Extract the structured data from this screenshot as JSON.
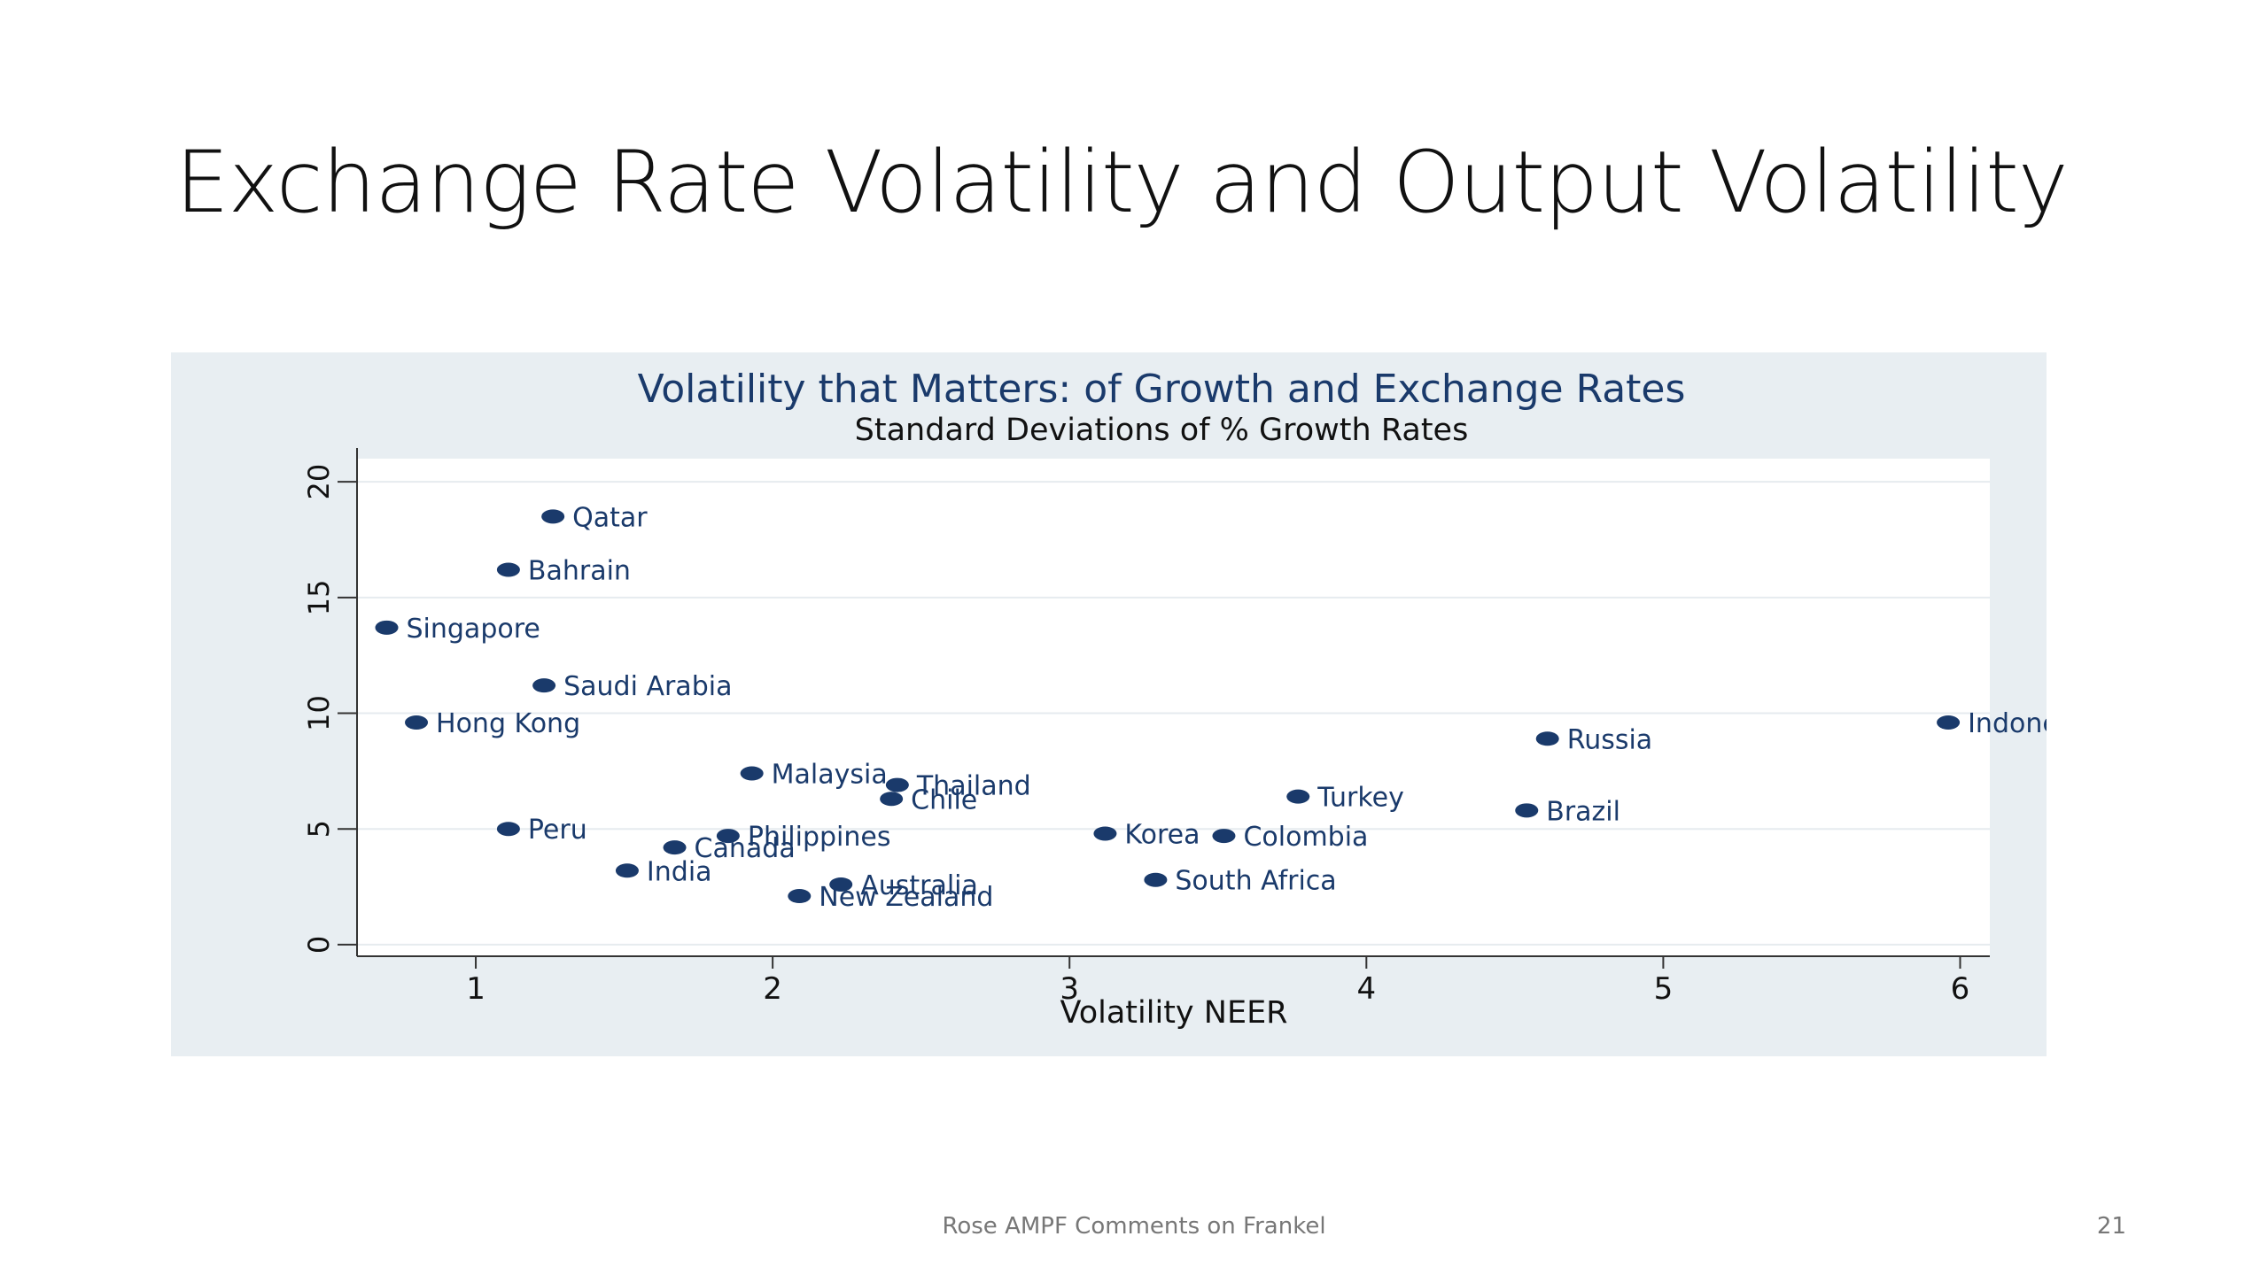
{
  "slide": {
    "title": "Exchange Rate Volatility and Output Volatility",
    "footer": "Rose AMPF Comments on Frankel",
    "page_number": "21"
  },
  "chart_data": {
    "type": "scatter",
    "title": "Volatility that Matters: of Growth and Exchange Rates",
    "subtitle": "Standard Deviations of % Growth Rates",
    "xlabel": "Volatility NEER",
    "ylabel": "",
    "xlim": [
      0.6,
      6.1
    ],
    "ylim": [
      -0.5,
      21
    ],
    "xticks": [
      1,
      2,
      3,
      4,
      5,
      6
    ],
    "yticks": [
      0,
      5,
      10,
      15,
      20
    ],
    "grid": true,
    "colors": {
      "point": "#1a3a6b",
      "label": "#1a3a6b",
      "title": "#1a3a6b",
      "panel": "#e8eef2",
      "plot": "#ffffff"
    },
    "points": [
      {
        "label": "Qatar",
        "x": 1.26,
        "y": 18.5
      },
      {
        "label": "Bahrain",
        "x": 1.11,
        "y": 16.2
      },
      {
        "label": "Singapore",
        "x": 0.7,
        "y": 13.7
      },
      {
        "label": "Saudi Arabia",
        "x": 1.23,
        "y": 11.2
      },
      {
        "label": "Hong Kong",
        "x": 0.8,
        "y": 9.6
      },
      {
        "label": "Malaysia",
        "x": 1.93,
        "y": 7.4
      },
      {
        "label": "Thailand",
        "x": 2.42,
        "y": 6.9
      },
      {
        "label": "Chile",
        "x": 2.4,
        "y": 6.3
      },
      {
        "label": "Peru",
        "x": 1.11,
        "y": 5.0
      },
      {
        "label": "Philippines",
        "x": 1.85,
        "y": 4.7
      },
      {
        "label": "Canada",
        "x": 1.67,
        "y": 4.2
      },
      {
        "label": "India",
        "x": 1.51,
        "y": 3.2
      },
      {
        "label": "Australia",
        "x": 2.23,
        "y": 2.6
      },
      {
        "label": "New Zealand",
        "x": 2.09,
        "y": 2.1
      },
      {
        "label": "Korea",
        "x": 3.12,
        "y": 4.8
      },
      {
        "label": "Colombia",
        "x": 3.52,
        "y": 4.7
      },
      {
        "label": "Turkey",
        "x": 3.77,
        "y": 6.4
      },
      {
        "label": "South Africa",
        "x": 3.29,
        "y": 2.8
      },
      {
        "label": "Russia",
        "x": 4.61,
        "y": 8.9
      },
      {
        "label": "Brazil",
        "x": 4.54,
        "y": 5.8
      },
      {
        "label": "Indonesia",
        "x": 5.96,
        "y": 9.6
      }
    ]
  }
}
